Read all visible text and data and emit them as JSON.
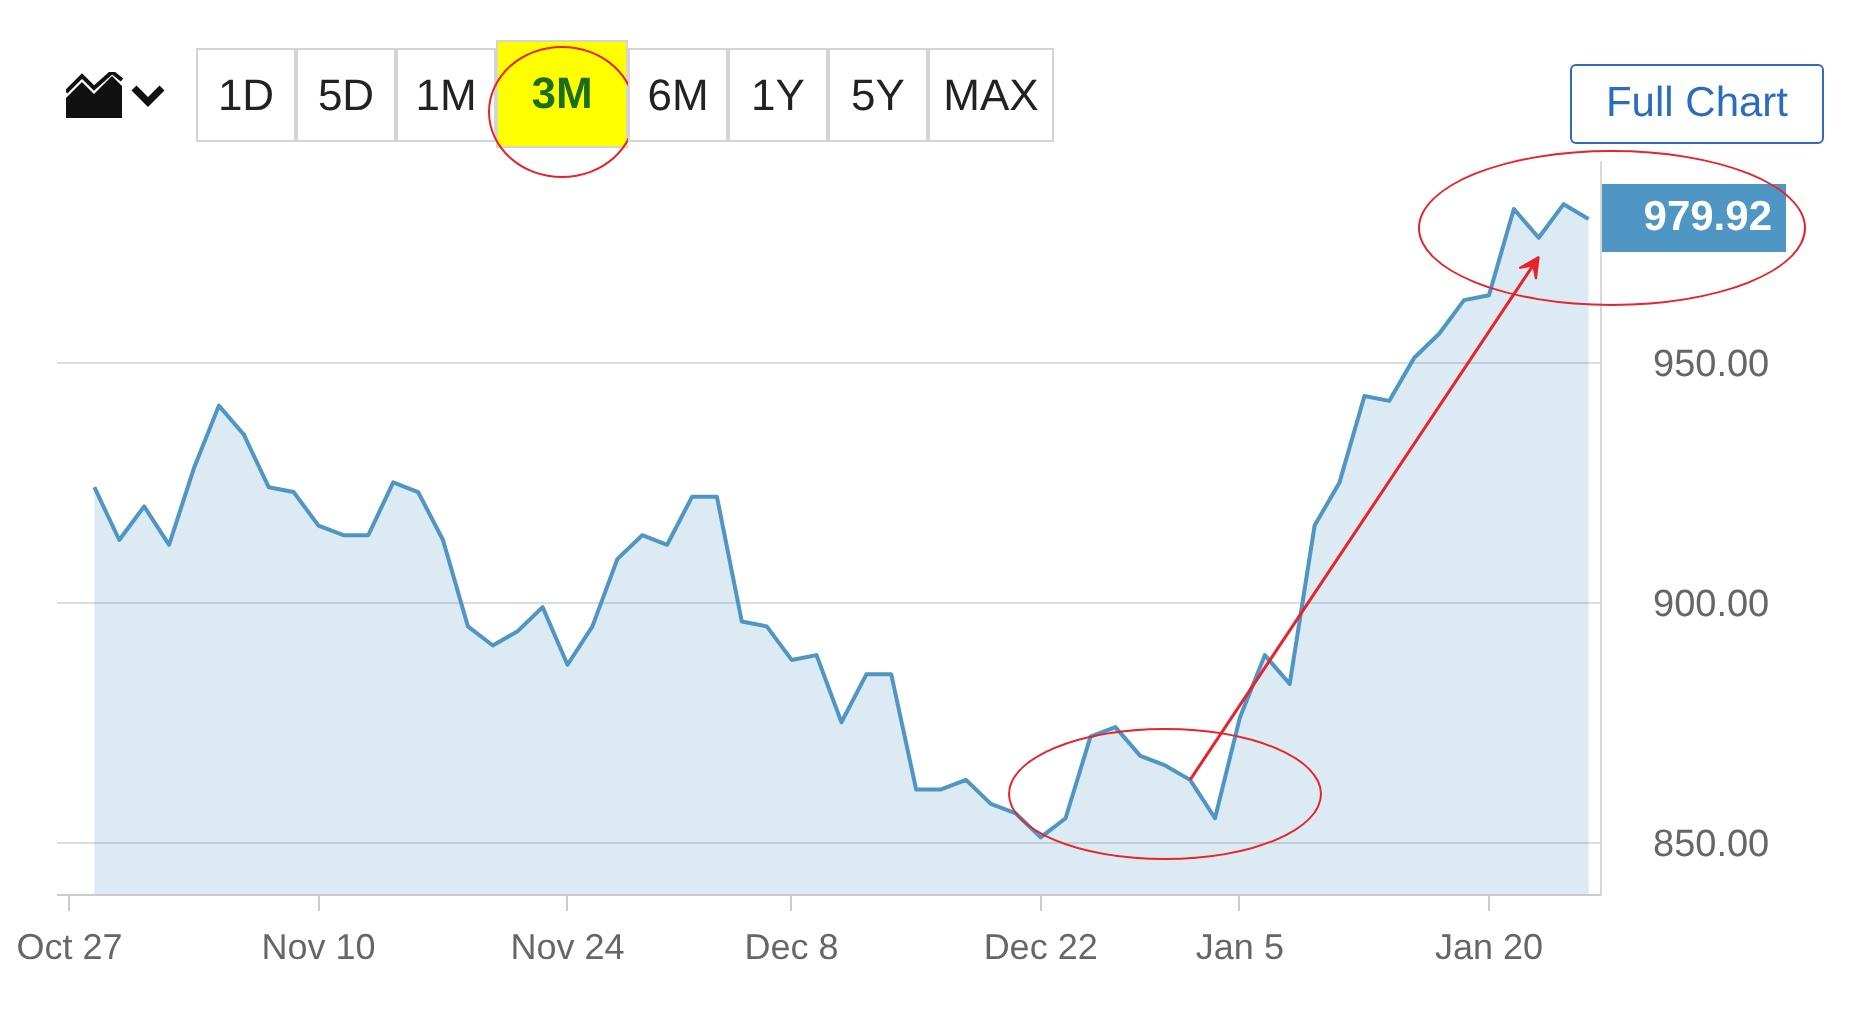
{
  "chart_data": {
    "type": "area",
    "categories": [
      "Oct 27",
      null,
      null,
      null,
      null,
      null,
      null,
      null,
      null,
      null,
      "Nov 10",
      null,
      null,
      null,
      null,
      null,
      null,
      null,
      null,
      null,
      "Nov 24",
      null,
      null,
      null,
      null,
      null,
      null,
      null,
      null,
      "Dec 8",
      null,
      null,
      null,
      null,
      null,
      null,
      null,
      null,
      null,
      "Dec 22",
      null,
      null,
      null,
      null,
      null,
      null,
      null,
      "Jan 5",
      null,
      null,
      null,
      null,
      null,
      null,
      null,
      null,
      null,
      "Jan 20",
      null,
      null,
      null,
      null
    ],
    "values": [
      null,
      924,
      913,
      920,
      912,
      928,
      941,
      935,
      924,
      923,
      916,
      914,
      914,
      925,
      923,
      913,
      895,
      891,
      894,
      899,
      887,
      895,
      909,
      914,
      912,
      922,
      922,
      896,
      895,
      888,
      889,
      875,
      885,
      885,
      861,
      861,
      863,
      858,
      856,
      851,
      855,
      872,
      874,
      868,
      866,
      863,
      855,
      876,
      889,
      883,
      916,
      925,
      943,
      942,
      951,
      956,
      963,
      964,
      982,
      976,
      983,
      979.92
    ],
    "color": "#4f96c4",
    "ylim": [
      839,
      992
    ],
    "yticks": [
      {
        "value": 850,
        "label": "850.00"
      },
      {
        "value": 900,
        "label": "900.00"
      },
      {
        "value": 950,
        "label": "950.00"
      }
    ],
    "grid": "y",
    "annotations": [
      "1D",
      "5D",
      "1M",
      "3M",
      "6M",
      "1Y",
      "5Y",
      "MAX",
      "Full Chart",
      "979.92"
    ]
  }
}
